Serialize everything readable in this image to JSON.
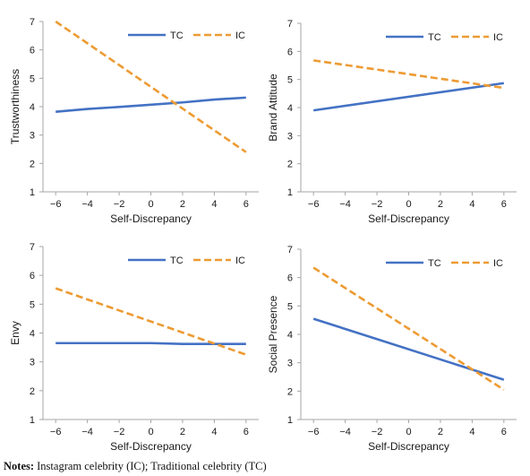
{
  "chart_data": [
    {
      "type": "line",
      "x": [
        -6,
        6
      ],
      "xticks": [
        -6,
        -4,
        -2,
        0,
        2,
        4,
        6
      ],
      "xlabel": "Self-Discrepancy",
      "ylabel": "Trustworthiness",
      "xlim": [
        -6.8,
        6.8
      ],
      "ylim": [
        1,
        7
      ],
      "yticks": [
        1,
        2,
        3,
        4,
        5,
        6,
        7
      ],
      "legend": "top-right",
      "series": [
        {
          "name": "TC",
          "color": "#4472C4",
          "dash": "solid",
          "x": [
            -6,
            -4,
            -2,
            0,
            2,
            4,
            6
          ],
          "values": [
            3.82,
            3.92,
            3.99,
            4.07,
            4.15,
            4.25,
            4.32
          ]
        },
        {
          "name": "IC",
          "color": "#ED9B33",
          "dash": "dashed",
          "x": [
            -6,
            6
          ],
          "values": [
            7.0,
            2.4
          ]
        }
      ]
    },
    {
      "type": "line",
      "x": [
        -6,
        6
      ],
      "xticks": [
        -6,
        -4,
        -2,
        0,
        2,
        4,
        6
      ],
      "xlabel": "Self-Discrepancy",
      "ylabel": "Brand Attitude",
      "xlim": [
        -6.8,
        6.8
      ],
      "ylim": [
        1,
        7
      ],
      "yticks": [
        1,
        2,
        3,
        4,
        5,
        6,
        7
      ],
      "legend": "top-right",
      "series": [
        {
          "name": "TC",
          "color": "#4472C4",
          "dash": "solid",
          "x": [
            -6,
            6
          ],
          "values": [
            3.9,
            4.87
          ]
        },
        {
          "name": "IC",
          "color": "#ED9B33",
          "dash": "dashed",
          "x": [
            -6,
            6
          ],
          "values": [
            5.68,
            4.7
          ]
        }
      ]
    },
    {
      "type": "line",
      "x": [
        -6,
        6
      ],
      "xticks": [
        -6,
        -4,
        -2,
        0,
        2,
        4,
        6
      ],
      "xlabel": "Self-Discrepancy",
      "ylabel": "Envy",
      "xlim": [
        -6.8,
        6.8
      ],
      "ylim": [
        1,
        7
      ],
      "yticks": [
        1,
        2,
        3,
        4,
        5,
        6,
        7
      ],
      "legend": "top-right",
      "series": [
        {
          "name": "TC",
          "color": "#4472C4",
          "dash": "solid",
          "x": [
            -6,
            0,
            2,
            6
          ],
          "values": [
            3.65,
            3.65,
            3.62,
            3.62
          ]
        },
        {
          "name": "IC",
          "color": "#ED9B33",
          "dash": "dashed",
          "x": [
            -6,
            6
          ],
          "values": [
            5.55,
            3.25
          ]
        }
      ]
    },
    {
      "type": "line",
      "x": [
        -6,
        6
      ],
      "xticks": [
        -6,
        -4,
        -2,
        0,
        2,
        4,
        6
      ],
      "xlabel": "Self-Discrepancy",
      "ylabel": "Social Presence",
      "xlim": [
        -6.8,
        6.8
      ],
      "ylim": [
        1,
        7
      ],
      "yticks": [
        1,
        2,
        3,
        4,
        5,
        6,
        7
      ],
      "legend": "top-right",
      "series": [
        {
          "name": "TC",
          "color": "#4472C4",
          "dash": "solid",
          "x": [
            -6,
            6
          ],
          "values": [
            4.55,
            2.4
          ]
        },
        {
          "name": "IC",
          "color": "#ED9B33",
          "dash": "dashed",
          "x": [
            -6,
            6
          ],
          "values": [
            6.35,
            2.05
          ]
        }
      ]
    }
  ],
  "notes": {
    "label": "Notes:",
    "text": " Instagram celebrity (IC); Traditional celebrity (TC)"
  },
  "colors": {
    "axis": "#a6a6a6",
    "text": "#1a1a1a"
  }
}
